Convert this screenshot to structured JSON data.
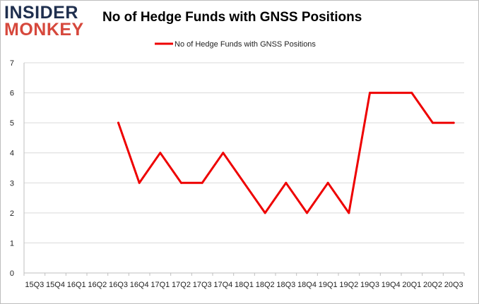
{
  "logo": {
    "line1": "INSIDER",
    "line2": "MONKEY"
  },
  "colors": {
    "series": "#ee0000",
    "grid": "#d9d9d9",
    "logo_dark": "#1f2f4e",
    "logo_red": "#d6483c"
  },
  "chart_data": {
    "type": "line",
    "title": "No of Hedge Funds with GNSS Positions",
    "xlabel": "",
    "ylabel": "",
    "ylim": [
      0,
      7
    ],
    "yticks": [
      "0",
      "1",
      "2",
      "3",
      "4",
      "5",
      "6",
      "7"
    ],
    "grid": true,
    "legend_position": "top-center",
    "categories": [
      "15Q3",
      "15Q4",
      "16Q1",
      "16Q2",
      "16Q3",
      "16Q4",
      "17Q1",
      "17Q2",
      "17Q3",
      "17Q4",
      "18Q1",
      "18Q2",
      "18Q3",
      "18Q4",
      "19Q1",
      "19Q2",
      "19Q3",
      "19Q4",
      "20Q1",
      "20Q2",
      "20Q3"
    ],
    "series": [
      {
        "name": "No of Hedge Funds with GNSS Positions",
        "values": [
          null,
          null,
          null,
          null,
          5,
          3,
          4,
          3,
          3,
          4,
          3,
          2,
          3,
          2,
          3,
          2,
          6,
          6,
          6,
          5,
          5
        ]
      }
    ]
  }
}
